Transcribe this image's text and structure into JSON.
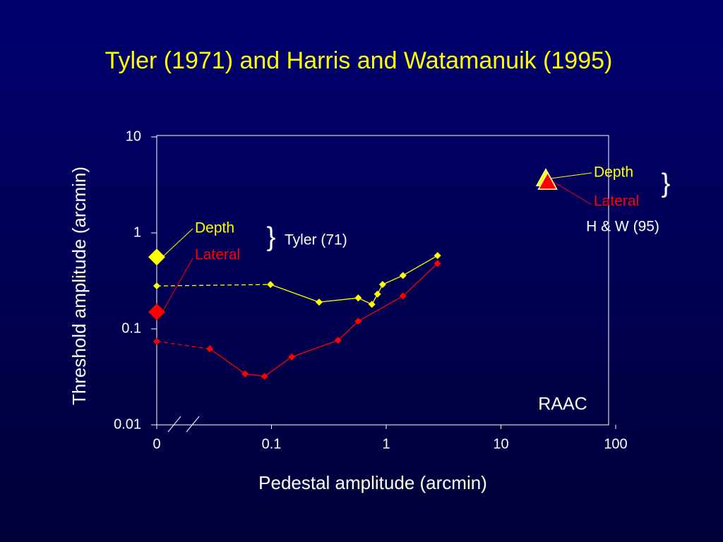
{
  "chart_data": {
    "type": "line",
    "title": "Tyler (1971) and Harris and Watamanuik (1995)",
    "xlabel": "Pedestal amplitude (arcmin)",
    "ylabel": "Threshold amplitude (arcmin)",
    "xscale": "log",
    "yscale": "log",
    "xlim": [
      0.01,
      100
    ],
    "ylim": [
      0.01,
      10
    ],
    "xticks": [
      {
        "value": 0.01,
        "label": "0"
      },
      0.1,
      1,
      10,
      100
    ],
    "yticks": [
      0.01,
      0.1,
      1,
      10
    ],
    "series": [
      {
        "color": "#ffff00",
        "dashed_segments": [
          0
        ],
        "x": [
          0.01,
          0.098,
          0.26,
          0.57,
          0.75,
          0.84,
          0.93,
          1.4,
          2.8
        ],
        "values": [
          0.28,
          0.29,
          0.19,
          0.21,
          0.18,
          0.23,
          0.29,
          0.36,
          0.58
        ]
      },
      {
        "color": "#ff0000",
        "dashed_segments": [
          0
        ],
        "x": [
          0.01,
          0.029,
          0.059,
          0.087,
          0.15,
          0.38,
          0.57,
          1.4,
          2.8
        ],
        "values": [
          0.074,
          0.062,
          0.034,
          0.032,
          0.051,
          0.076,
          0.12,
          0.22,
          0.48
        ]
      }
    ],
    "groups": [
      {
        "label": "Tyler (71)",
        "brace": "}",
        "shape": "diamond",
        "points": [
          {
            "name": "Depth",
            "color": "#ffff00",
            "x": 0.01,
            "value": 0.56
          },
          {
            "name": "Lateral",
            "color": "#ff0000",
            "x": 0.01,
            "value": 0.15
          }
        ]
      },
      {
        "label": "H & W (95)",
        "brace": "}",
        "shape": "triangle",
        "points": [
          {
            "name": "Depth",
            "color": "#ffff00",
            "x": 24.6,
            "value": 3.7
          },
          {
            "name": "Lateral",
            "color": "#ff0000",
            "x": 25.5,
            "value": 3.4
          }
        ]
      }
    ],
    "annotation": "RAAC"
  }
}
